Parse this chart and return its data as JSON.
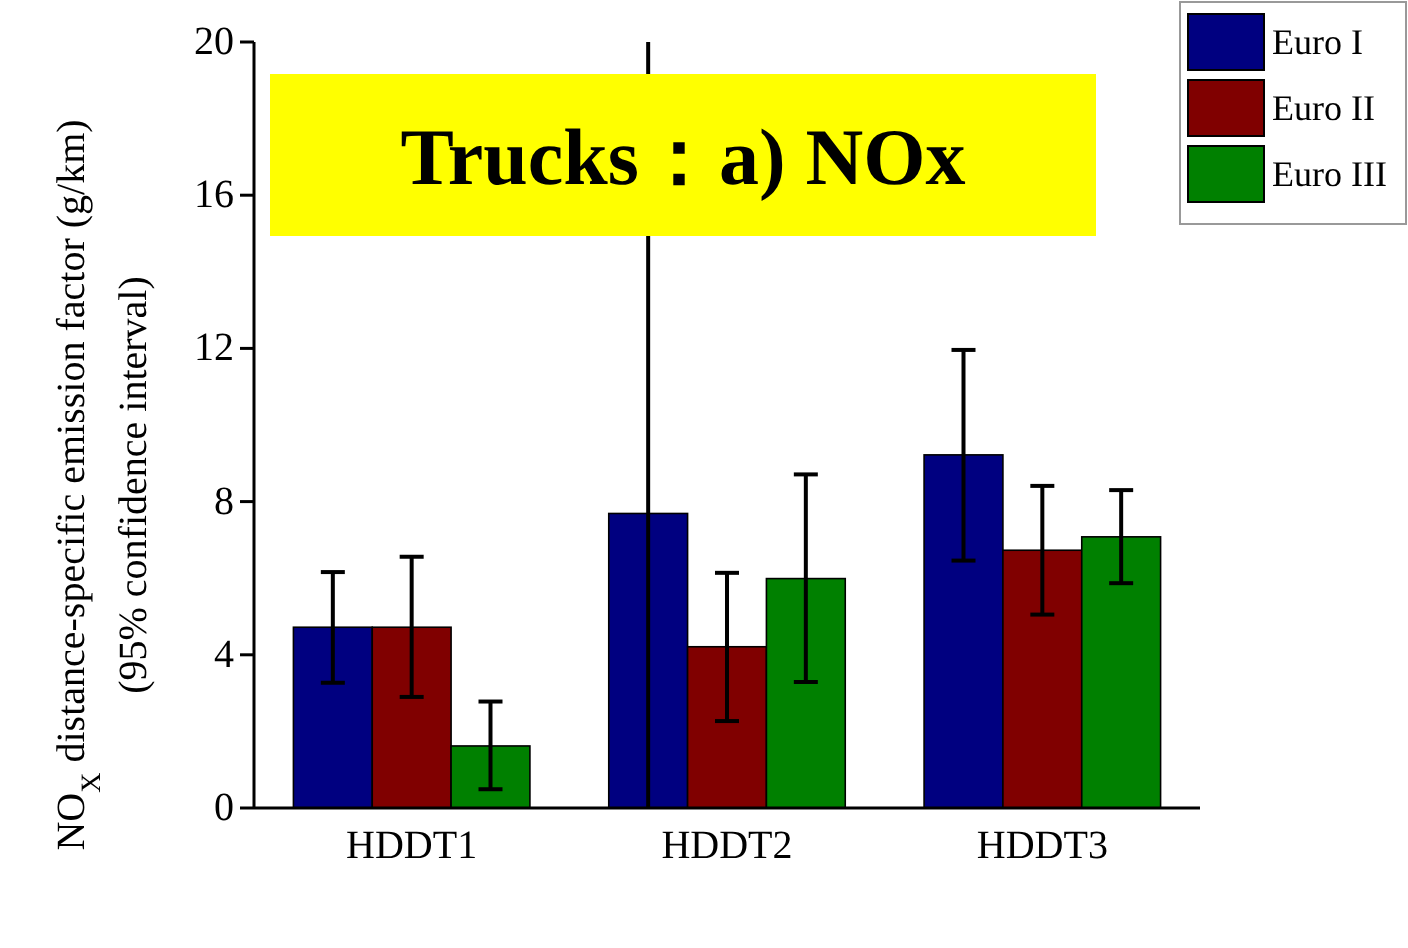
{
  "chart_data": {
    "type": "bar",
    "title": "Trucks：a) NOx",
    "ylabel": "NO$_{X}$ distance-specific emission factor (g/km)\n(95% confidence interval)",
    "categories": [
      "HDDT1",
      "HDDT2",
      "HDDT3"
    ],
    "series": [
      {
        "name": "Euro I",
        "color": "#000080",
        "values": [
          4.72,
          7.69,
          9.22
        ],
        "errors": [
          [
            3.27,
            6.16
          ],
          [
            0,
            20
          ],
          [
            6.46,
            11.96
          ]
        ]
      },
      {
        "name": "Euro II",
        "color": "#800000",
        "values": [
          4.72,
          4.21,
          6.73
        ],
        "errors": [
          [
            2.9,
            6.56
          ],
          [
            2.27,
            6.14
          ],
          [
            5.05,
            8.41
          ]
        ]
      },
      {
        "name": "Euro III",
        "color": "#008000",
        "values": [
          1.62,
          5.99,
          7.08
        ],
        "errors": [
          [
            0.49,
            2.78
          ],
          [
            3.29,
            8.71
          ],
          [
            5.87,
            8.3
          ]
        ]
      }
    ],
    "ylim": [
      0,
      20
    ],
    "yticks": [
      0,
      4,
      8,
      12,
      16,
      20
    ],
    "legend": "top right",
    "grid": false
  }
}
